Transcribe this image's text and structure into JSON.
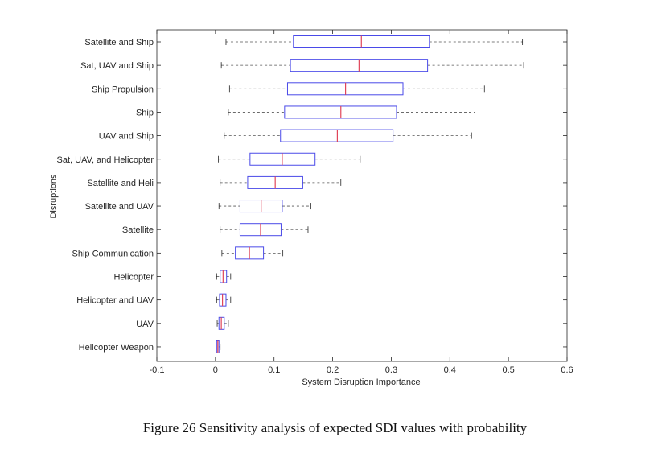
{
  "chart_data": {
    "type": "boxplot",
    "orientation": "horizontal",
    "xlabel": "System Disruption Importance",
    "ylabel": "Disruptions",
    "xlim": [
      -0.1,
      0.6
    ],
    "xticks": [
      -0.1,
      0,
      0.1,
      0.2,
      0.3,
      0.4,
      0.5,
      0.6
    ],
    "xtick_labels": [
      "-0.1",
      "0",
      "0.1",
      "0.2",
      "0.3",
      "0.4",
      "0.5",
      "0.6"
    ],
    "grid": false,
    "colors": {
      "box": "#4a4ae8",
      "median": "#e0455a",
      "whisker": "#555555",
      "axis": "#262626"
    },
    "categories": [
      "Satellite and Ship",
      "Sat, UAV and Ship",
      "Ship Propulsion",
      "Ship",
      "UAV and Ship",
      "Sat, UAV, and Helicopter",
      "Satellite and Heli",
      "Satellite and UAV",
      "Satellite",
      "Ship Communication",
      "Helicopter",
      "Helicopter and UAV",
      "UAV",
      "Helicopter Weapon"
    ],
    "boxes": [
      {
        "min": 0.018,
        "q1": 0.133,
        "median": 0.249,
        "q3": 0.365,
        "max": 0.524
      },
      {
        "min": 0.01,
        "q1": 0.128,
        "median": 0.245,
        "q3": 0.362,
        "max": 0.526
      },
      {
        "min": 0.024,
        "q1": 0.123,
        "median": 0.222,
        "q3": 0.32,
        "max": 0.459
      },
      {
        "min": 0.022,
        "q1": 0.118,
        "median": 0.214,
        "q3": 0.309,
        "max": 0.443
      },
      {
        "min": 0.015,
        "q1": 0.111,
        "median": 0.208,
        "q3": 0.303,
        "max": 0.437
      },
      {
        "min": 0.005,
        "q1": 0.059,
        "median": 0.114,
        "q3": 0.17,
        "max": 0.247
      },
      {
        "min": 0.008,
        "q1": 0.055,
        "median": 0.102,
        "q3": 0.149,
        "max": 0.214
      },
      {
        "min": 0.006,
        "q1": 0.042,
        "median": 0.078,
        "q3": 0.114,
        "max": 0.163
      },
      {
        "min": 0.008,
        "q1": 0.042,
        "median": 0.077,
        "q3": 0.112,
        "max": 0.158
      },
      {
        "min": 0.011,
        "q1": 0.034,
        "median": 0.058,
        "q3": 0.082,
        "max": 0.115
      },
      {
        "min": 0.002,
        "q1": 0.008,
        "median": 0.013,
        "q3": 0.019,
        "max": 0.026
      },
      {
        "min": 0.002,
        "q1": 0.007,
        "median": 0.012,
        "q3": 0.018,
        "max": 0.026
      },
      {
        "min": 0.003,
        "q1": 0.006,
        "median": 0.01,
        "q3": 0.015,
        "max": 0.022
      },
      {
        "min": 0.001,
        "q1": 0.002,
        "median": 0.004,
        "q3": 0.006,
        "max": 0.008
      }
    ]
  },
  "caption": "Figure 26 Sensitivity analysis of expected SDI values with probability"
}
